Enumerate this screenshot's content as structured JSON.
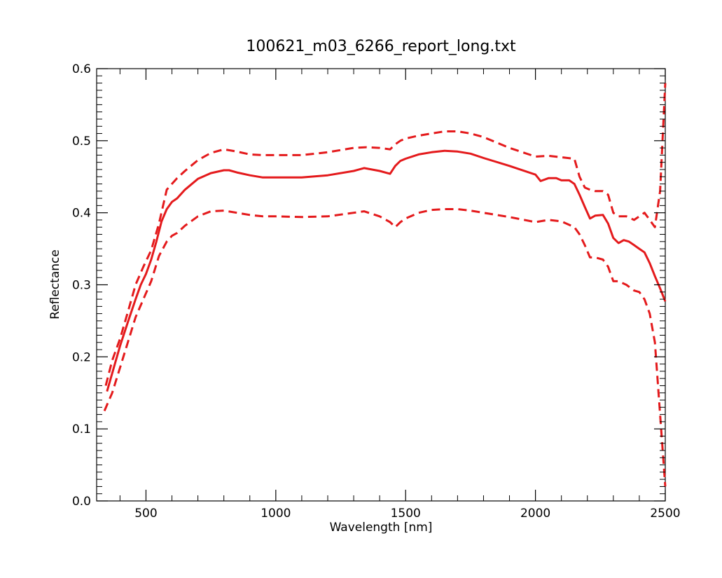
{
  "chart_data": {
    "type": "line",
    "title": "100621_m03_6266_report_long.txt",
    "xlabel": "Wavelength [nm]",
    "ylabel": "Reflectance",
    "xlim": [
      310,
      2500
    ],
    "ylim": [
      0.0,
      0.6
    ],
    "xticks": [
      500,
      1000,
      1500,
      2000,
      2500
    ],
    "yticks": [
      0.0,
      0.1,
      0.2,
      0.3,
      0.4,
      0.5,
      0.6
    ],
    "xtick_labels": [
      "500",
      "1000",
      "1500",
      "2000",
      "2500"
    ],
    "ytick_labels": [
      "0.0",
      "0.1",
      "0.2",
      "0.3",
      "0.4",
      "0.5",
      "0.6"
    ],
    "grid": false,
    "line_color": "#e41a1c",
    "series": [
      {
        "style": "solid",
        "x": [
          350,
          380,
          400,
          430,
          460,
          480,
          500,
          520,
          540,
          560,
          580,
          600,
          620,
          650,
          700,
          750,
          800,
          820,
          850,
          900,
          950,
          1000,
          1100,
          1200,
          1300,
          1340,
          1400,
          1440,
          1460,
          1480,
          1500,
          1550,
          1600,
          1650,
          1700,
          1750,
          1800,
          1900,
          2000,
          2020,
          2050,
          2080,
          2100,
          2130,
          2150,
          2170,
          2190,
          2210,
          2230,
          2260,
          2280,
          2300,
          2320,
          2340,
          2360,
          2380,
          2400,
          2420,
          2440,
          2460,
          2480,
          2500
        ],
        "y": [
          0.152,
          0.19,
          0.215,
          0.248,
          0.28,
          0.3,
          0.315,
          0.335,
          0.36,
          0.388,
          0.405,
          0.415,
          0.42,
          0.432,
          0.447,
          0.455,
          0.459,
          0.459,
          0.456,
          0.452,
          0.449,
          0.449,
          0.449,
          0.452,
          0.458,
          0.462,
          0.458,
          0.454,
          0.465,
          0.472,
          0.475,
          0.481,
          0.484,
          0.486,
          0.485,
          0.482,
          0.476,
          0.465,
          0.453,
          0.444,
          0.448,
          0.448,
          0.445,
          0.445,
          0.44,
          0.425,
          0.408,
          0.392,
          0.396,
          0.397,
          0.385,
          0.365,
          0.358,
          0.362,
          0.36,
          0.355,
          0.35,
          0.345,
          0.33,
          0.312,
          0.295,
          0.277
        ]
      },
      {
        "style": "dashed",
        "x": [
          345,
          370,
          400,
          430,
          460,
          490,
          520,
          550,
          580,
          600,
          620,
          650,
          700,
          750,
          800,
          850,
          900,
          950,
          1000,
          1100,
          1200,
          1300,
          1350,
          1400,
          1440,
          1460,
          1480,
          1500,
          1550,
          1600,
          1650,
          1700,
          1750,
          1800,
          1900,
          2000,
          2050,
          2100,
          2150,
          2170,
          2190,
          2210,
          2230,
          2260,
          2280,
          2300,
          2320,
          2350,
          2380,
          2400,
          2420,
          2440,
          2460,
          2480,
          2500
        ],
        "y": [
          0.16,
          0.195,
          0.225,
          0.262,
          0.3,
          0.325,
          0.348,
          0.385,
          0.432,
          0.44,
          0.448,
          0.458,
          0.473,
          0.483,
          0.488,
          0.485,
          0.481,
          0.48,
          0.48,
          0.48,
          0.484,
          0.49,
          0.491,
          0.49,
          0.488,
          0.495,
          0.5,
          0.503,
          0.507,
          0.51,
          0.513,
          0.513,
          0.51,
          0.505,
          0.49,
          0.478,
          0.479,
          0.477,
          0.475,
          0.45,
          0.435,
          0.432,
          0.43,
          0.43,
          0.425,
          0.4,
          0.395,
          0.395,
          0.39,
          0.395,
          0.4,
          0.39,
          0.38,
          0.43,
          0.58
        ]
      },
      {
        "style": "dashed",
        "x": [
          340,
          370,
          400,
          430,
          460,
          490,
          520,
          550,
          580,
          600,
          620,
          650,
          700,
          750,
          800,
          850,
          900,
          950,
          1000,
          1100,
          1200,
          1300,
          1340,
          1400,
          1440,
          1460,
          1480,
          1500,
          1550,
          1600,
          1650,
          1700,
          1750,
          1800,
          1900,
          2000,
          2050,
          2100,
          2150,
          2170,
          2190,
          2210,
          2230,
          2260,
          2280,
          2300,
          2320,
          2350,
          2380,
          2400,
          2420,
          2440,
          2460,
          2480,
          2500
        ],
        "y": [
          0.125,
          0.15,
          0.185,
          0.22,
          0.255,
          0.28,
          0.305,
          0.34,
          0.36,
          0.368,
          0.372,
          0.382,
          0.395,
          0.402,
          0.403,
          0.4,
          0.397,
          0.395,
          0.395,
          0.394,
          0.395,
          0.4,
          0.402,
          0.395,
          0.387,
          0.38,
          0.387,
          0.392,
          0.4,
          0.404,
          0.405,
          0.405,
          0.403,
          0.4,
          0.394,
          0.387,
          0.39,
          0.388,
          0.38,
          0.37,
          0.355,
          0.338,
          0.338,
          0.335,
          0.325,
          0.305,
          0.305,
          0.3,
          0.292,
          0.29,
          0.28,
          0.26,
          0.22,
          0.12,
          0.02
        ]
      }
    ]
  }
}
